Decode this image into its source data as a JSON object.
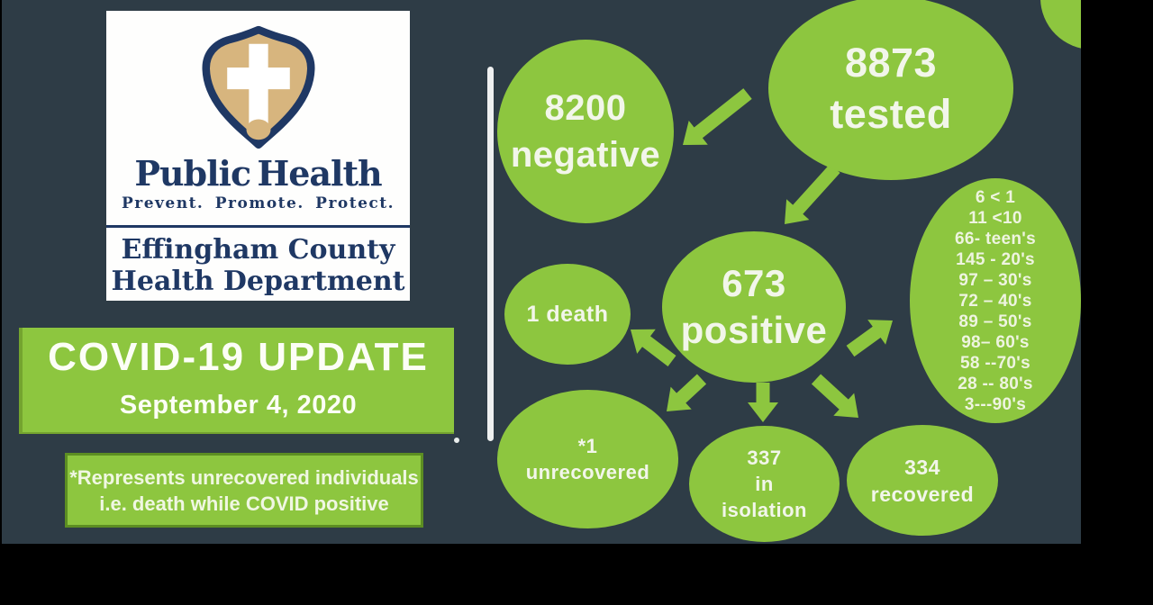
{
  "slide": {
    "logo": {
      "title": "Public Health",
      "tagline": "Prevent. Promote. Protect.",
      "org_line1": "Effingham County",
      "org_line2": "Health Department"
    },
    "banner": {
      "title": "COVID-19 UPDATE",
      "date": "September 4, 2020"
    },
    "footnote": {
      "line1": "*Represents unrecovered individuals",
      "line2": "i.e. death while COVID positive"
    }
  },
  "diagram": {
    "nodes": {
      "tested": {
        "value": "8873",
        "label": "tested"
      },
      "negative": {
        "value": "8200",
        "label": "negative"
      },
      "positive": {
        "value": "673",
        "label": "positive"
      },
      "death": {
        "label": "1 death"
      },
      "unrecovered": {
        "value": "*1",
        "label": "unrecovered"
      },
      "isolation": {
        "value": "337",
        "line2": "in",
        "line3": "isolation"
      },
      "recovered": {
        "value": "334",
        "label": "recovered"
      },
      "ages": {
        "lines": [
          "6  < 1",
          "11 <10",
          "66- teen's",
          "145 - 20's",
          "97 – 30's",
          "72 – 40's",
          "89 – 50's",
          "98– 60's",
          "58 --70's",
          "28 -- 80's",
          "3---90's"
        ]
      }
    },
    "edges": [
      {
        "from": "tested",
        "to": "negative"
      },
      {
        "from": "tested",
        "to": "positive"
      },
      {
        "from": "positive",
        "to": "death"
      },
      {
        "from": "positive",
        "to": "unrecovered"
      },
      {
        "from": "positive",
        "to": "isolation"
      },
      {
        "from": "positive",
        "to": "recovered"
      },
      {
        "from": "positive",
        "to": "ages"
      }
    ]
  },
  "colors": {
    "background": "#2E3C46",
    "green": "#8DC63F",
    "green_dark_border": "#5C8E22",
    "navy": "#1F3864",
    "tan": "#D7B57E",
    "text_light": "#F2F6EA",
    "black_bar": "#000000"
  }
}
